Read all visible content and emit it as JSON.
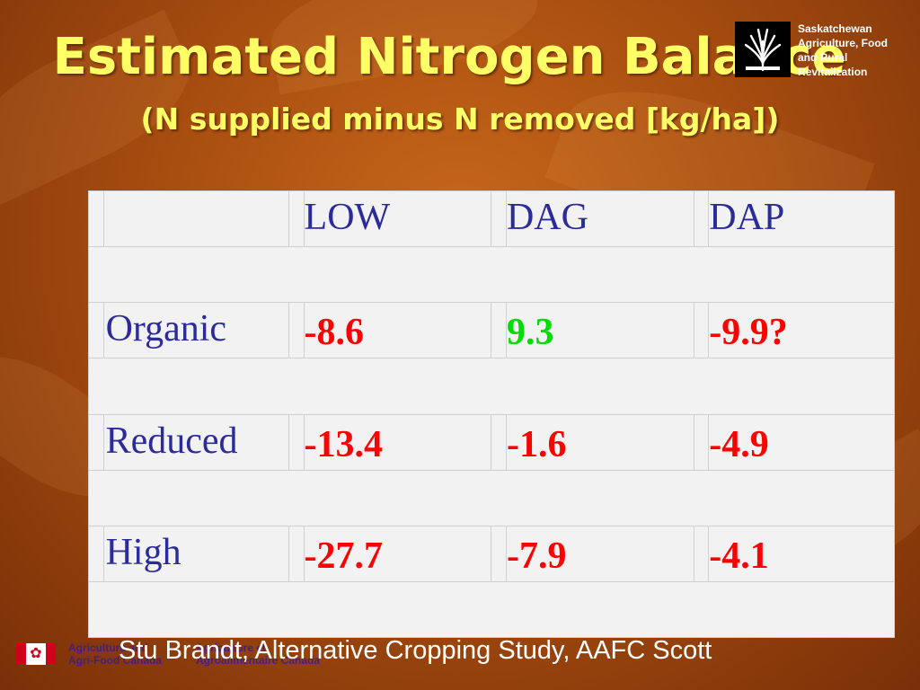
{
  "slide": {
    "title": "Estimated Nitrogen Balance",
    "subtitle": "(N supplied minus N removed [kg/ha])",
    "title_color": "#ffff66"
  },
  "logo": {
    "icon": "wheat-sheaf-icon",
    "lines": [
      "Saskatchewan",
      "Agriculture, Food",
      "and Rural",
      "Revitalization"
    ]
  },
  "table": {
    "columns": [
      "LOW",
      "DAG",
      "DAP"
    ],
    "rows": [
      {
        "label": "Organic",
        "values": [
          "-8.6",
          "9.3",
          "-9.9?"
        ],
        "colors": [
          "#ff0000",
          "#00dd00",
          "#ff0000"
        ]
      },
      {
        "label": "Reduced",
        "values": [
          "-13.4",
          "-1.6",
          "-4.9"
        ],
        "colors": [
          "#ff0000",
          "#ff0000",
          "#ff0000"
        ]
      },
      {
        "label": "High",
        "values": [
          "-27.7",
          "-7.9",
          "-4.1"
        ],
        "colors": [
          "#ff0000",
          "#ff0000",
          "#ff0000"
        ]
      }
    ],
    "label_color": "#2b2b9a"
  },
  "footer": {
    "flag_icon": "canada-flag-icon",
    "agency_en": [
      "Agriculture and",
      "Agri-Food Canada"
    ],
    "agency_fr": [
      "Agriculture et",
      "Agroalimentaire Canada"
    ],
    "credit": "Stu Brandt, Alternative Cropping Study, AAFC Scott"
  }
}
